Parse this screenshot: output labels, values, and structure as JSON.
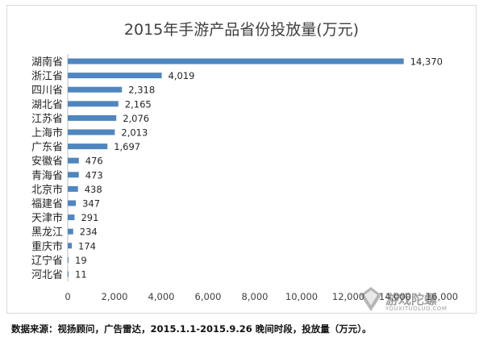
{
  "chart_data": {
    "type": "bar",
    "orientation": "horizontal",
    "title": "2015年手游产品省份投放量(万元)",
    "categories": [
      "湖南省",
      "浙江省",
      "四川省",
      "湖北省",
      "江苏省",
      "上海市",
      "广东省",
      "安徽省",
      "青海省",
      "北京市",
      "福建省",
      "天津市",
      "黑龙江",
      "重庆市",
      "辽宁省",
      "河北省"
    ],
    "values": [
      14370,
      4019,
      2318,
      2165,
      2076,
      2013,
      1697,
      476,
      473,
      438,
      347,
      291,
      234,
      174,
      19,
      11
    ],
    "value_labels": [
      "14,370",
      "4,019",
      "2,318",
      "2,165",
      "2,076",
      "2,013",
      "1,697",
      "476",
      "473",
      "438",
      "347",
      "291",
      "234",
      "174",
      "19",
      "11"
    ],
    "xlim": [
      0,
      16000
    ],
    "x_ticks": [
      "0",
      "2,000",
      "4,000",
      "6,000",
      "8,000",
      "10,000",
      "12,000",
      "14,000",
      "16,000"
    ],
    "grid": false,
    "bar_color": "#4f86bf"
  },
  "footnote": "数据来源：视扬顾问，广告雷达，2015.1.1-2015.9.26 晚间时段，投放量（万元）。",
  "watermark": {
    "brand": "游戏陀螺",
    "domain": "YOUXITUOLUO.COM"
  }
}
